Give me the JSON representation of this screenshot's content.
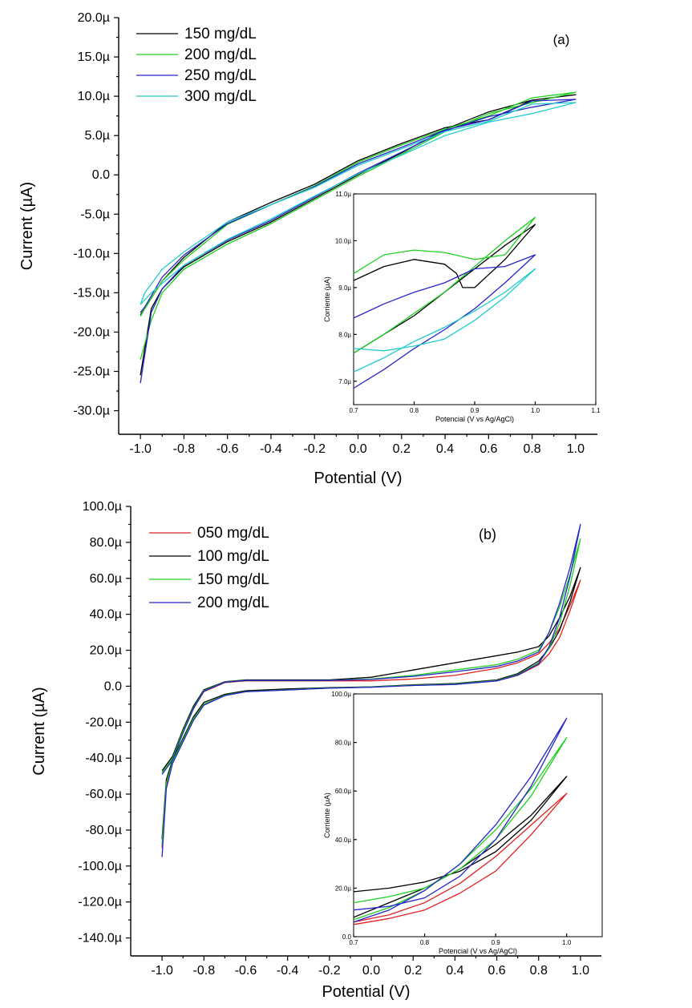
{
  "chart_data": [
    {
      "panel": "a",
      "type": "line",
      "annotation": "(a)",
      "xlabel": "Potential (V)",
      "ylabel": "Current (µA)",
      "xlim": [
        -1.1,
        1.1
      ],
      "ylim": [
        -33,
        20
      ],
      "xticks": [
        -1.0,
        -0.8,
        -0.6,
        -0.4,
        -0.2,
        0.0,
        0.2,
        0.4,
        0.6,
        0.8,
        1.0
      ],
      "xtick_labels": [
        "-1.0",
        "-0.8",
        "-0.6",
        "-0.4",
        "-0.2",
        "0.0",
        "0.2",
        "0.4",
        "0.6",
        "0.8",
        "1.0"
      ],
      "yticks": [
        20,
        15,
        10,
        5,
        0,
        -5,
        -10,
        -15,
        -20,
        -25,
        -30
      ],
      "ytick_labels": [
        "20.0µ",
        "15.0µ",
        "10.0µ",
        "5.0µ",
        "0.0",
        "-5.0µ",
        "-10.0µ",
        "-15.0µ",
        "-20.0µ",
        "-25.0µ",
        "-30.0µ"
      ],
      "legend_position": "top-left",
      "series": [
        {
          "name": "150 mg/dL",
          "color": "#000000",
          "x": [
            -1.0,
            -0.95,
            -0.9,
            -0.8,
            -0.6,
            -0.4,
            -0.2,
            0.0,
            0.2,
            0.4,
            0.6,
            0.8,
            1.0,
            0.8,
            0.6,
            0.4,
            0.2,
            0.0,
            -0.2,
            -0.4,
            -0.6,
            -0.8,
            -0.9,
            -0.98,
            -1.0
          ],
          "y": [
            -25.5,
            -17.0,
            -14.5,
            -11.7,
            -8.5,
            -6.0,
            -3.0,
            0.0,
            2.8,
            5.8,
            8.0,
            9.5,
            10.2,
            9.5,
            7.0,
            6.0,
            4.0,
            1.8,
            -1.2,
            -3.5,
            -6.0,
            -10.5,
            -13.5,
            -17.0,
            -17.8
          ]
        },
        {
          "name": "200 mg/dL",
          "color": "#1fd01f",
          "x": [
            -1.0,
            -0.95,
            -0.9,
            -0.8,
            -0.6,
            -0.4,
            -0.2,
            0.0,
            0.2,
            0.4,
            0.6,
            0.8,
            1.0,
            0.8,
            0.6,
            0.4,
            0.2,
            0.0,
            -0.2,
            -0.4,
            -0.6,
            -0.8,
            -0.9,
            -0.98,
            -1.0
          ],
          "y": [
            -23.5,
            -18.5,
            -15.0,
            -12.0,
            -8.8,
            -6.2,
            -3.2,
            -0.2,
            2.6,
            5.5,
            7.8,
            9.2,
            10.5,
            9.8,
            7.5,
            5.8,
            3.8,
            1.6,
            -1.4,
            -3.8,
            -6.3,
            -10.8,
            -13.5,
            -17.0,
            -18.0
          ]
        },
        {
          "name": "250 mg/dL",
          "color": "#2424c8",
          "x": [
            -1.0,
            -0.95,
            -0.9,
            -0.8,
            -0.6,
            -0.4,
            -0.2,
            0.0,
            0.2,
            0.4,
            0.6,
            0.8,
            1.0,
            0.8,
            0.6,
            0.4,
            0.2,
            0.0,
            -0.2,
            -0.4,
            -0.6,
            -0.8,
            -0.9,
            -0.98,
            -1.0
          ],
          "y": [
            -26.5,
            -17.5,
            -14.5,
            -11.5,
            -8.3,
            -5.8,
            -2.8,
            0.2,
            2.9,
            5.6,
            7.4,
            8.6,
            9.6,
            9.4,
            7.0,
            5.7,
            3.5,
            1.4,
            -1.5,
            -3.8,
            -6.2,
            -10.2,
            -13.0,
            -16.8,
            -17.5
          ]
        },
        {
          "name": "300 mg/dL",
          "color": "#22cccc",
          "x": [
            -1.0,
            -0.95,
            -0.9,
            -0.8,
            -0.6,
            -0.4,
            -0.2,
            0.0,
            0.2,
            0.4,
            0.6,
            0.8,
            1.0,
            0.8,
            0.6,
            0.4,
            0.2,
            0.0,
            -0.2,
            -0.4,
            -0.6,
            -0.8,
            -0.9,
            -0.98,
            -1.0
          ],
          "y": [
            -16.5,
            -15.0,
            -13.8,
            -11.5,
            -8.2,
            -5.6,
            -2.7,
            0.1,
            2.5,
            5.0,
            6.7,
            7.8,
            9.2,
            9.0,
            6.8,
            5.5,
            3.3,
            1.2,
            -1.6,
            -3.8,
            -6.0,
            -9.8,
            -12.0,
            -15.0,
            -16.5
          ]
        }
      ],
      "inset": {
        "xlabel": "Potencial (V vs Ag/AgCl)",
        "ylabel": "Corriente (µA)",
        "xlim": [
          0.7,
          1.1
        ],
        "ylim": [
          6.5,
          11.0
        ],
        "xticks": [
          0.7,
          0.8,
          0.9,
          1.0,
          1.1
        ],
        "xtick_labels": [
          "0.7",
          "0.8",
          "0.9",
          "1.0",
          "1.1"
        ],
        "yticks": [
          7.0,
          8.0,
          9.0,
          10.0,
          11.0
        ],
        "ytick_labels": [
          "7.0µ",
          "8.0µ",
          "9.0µ",
          "10.0µ",
          "11.0µ"
        ],
        "series": [
          {
            "color": "#000000",
            "x": [
              0.7,
              0.75,
              0.8,
              0.85,
              0.87,
              0.88,
              0.9,
              0.95,
              1.0,
              0.95,
              0.9,
              0.85,
              0.8,
              0.75,
              0.7
            ],
            "y": [
              9.15,
              9.45,
              9.6,
              9.5,
              9.3,
              9.0,
              9.0,
              9.6,
              10.35,
              9.9,
              9.4,
              8.9,
              8.4,
              8.0,
              7.6
            ]
          },
          {
            "color": "#1fd01f",
            "x": [
              0.7,
              0.75,
              0.8,
              0.85,
              0.9,
              0.95,
              1.0,
              0.95,
              0.9,
              0.85,
              0.8,
              0.75,
              0.7
            ],
            "y": [
              9.3,
              9.7,
              9.8,
              9.75,
              9.6,
              9.7,
              10.5,
              10.0,
              9.45,
              8.9,
              8.45,
              8.0,
              7.6
            ]
          },
          {
            "color": "#2424c8",
            "x": [
              0.7,
              0.75,
              0.8,
              0.85,
              0.9,
              0.95,
              1.0,
              0.95,
              0.9,
              0.85,
              0.8,
              0.75,
              0.7
            ],
            "y": [
              8.35,
              8.65,
              8.9,
              9.1,
              9.4,
              9.45,
              9.7,
              9.1,
              8.55,
              8.1,
              7.7,
              7.25,
              6.85
            ]
          },
          {
            "color": "#22cccc",
            "x": [
              0.7,
              0.75,
              0.8,
              0.85,
              0.9,
              0.95,
              1.0,
              0.95,
              0.9,
              0.85,
              0.8,
              0.75,
              0.7
            ],
            "y": [
              7.7,
              7.65,
              7.75,
              7.9,
              8.3,
              8.8,
              9.4,
              8.9,
              8.5,
              8.15,
              7.85,
              7.5,
              7.2
            ]
          }
        ]
      }
    },
    {
      "panel": "b",
      "type": "line",
      "annotation": "(b)",
      "xlabel": "Potential (V)",
      "ylabel": "Current (µA)",
      "xlim": [
        -1.15,
        1.1
      ],
      "ylim": [
        -150,
        100
      ],
      "xticks": [
        -1.0,
        -0.8,
        -0.6,
        -0.4,
        -0.2,
        0.0,
        0.2,
        0.4,
        0.6,
        0.8,
        1.0
      ],
      "xtick_labels": [
        "-1.0",
        "-0.8",
        "-0.6",
        "-0.4",
        "-0.2",
        "0.0",
        "0.2",
        "0.4",
        "0.6",
        "0.8",
        "1.0"
      ],
      "yticks": [
        100,
        80,
        60,
        40,
        20,
        0,
        -20,
        -40,
        -60,
        -80,
        -100,
        -120,
        -140
      ],
      "ytick_labels": [
        "100.0µ",
        "80.0µ",
        "60.0µ",
        "40.0µ",
        "20.0µ",
        "0.0",
        "-20.0µ",
        "-40.0µ",
        "-60.0µ",
        "-80.0µ",
        "-100.0µ",
        "-120.0µ",
        "-140.0µ"
      ],
      "legend_position": "top-left",
      "series": [
        {
          "name": "050 mg/dL",
          "color": "#e02020",
          "x": [
            -1.0,
            -0.98,
            -0.95,
            -0.9,
            -0.85,
            -0.8,
            -0.7,
            -0.6,
            -0.4,
            -0.2,
            0.0,
            0.2,
            0.4,
            0.6,
            0.7,
            0.8,
            0.85,
            0.9,
            0.95,
            1.0,
            0.95,
            0.9,
            0.85,
            0.8,
            0.7,
            0.6,
            0.4,
            0.2,
            0.0,
            -0.2,
            -0.4,
            -0.6,
            -0.7,
            -0.8,
            -0.85,
            -0.9,
            -0.95,
            -1.0
          ],
          "y": [
            -90,
            -55,
            -42,
            -30,
            -18,
            -10,
            -5,
            -3,
            -2,
            -1,
            -0.5,
            0.5,
            1,
            3,
            6,
            12,
            18,
            27,
            42,
            59,
            45,
            32,
            24,
            18,
            13,
            10,
            6,
            4,
            3,
            3,
            3,
            3,
            2,
            -3,
            -12,
            -25,
            -40,
            -48
          ]
        },
        {
          "name": "100 mg/dL",
          "color": "#000000",
          "x": [
            -1.0,
            -0.98,
            -0.95,
            -0.9,
            -0.85,
            -0.8,
            -0.7,
            -0.6,
            -0.4,
            -0.2,
            0.0,
            0.2,
            0.4,
            0.6,
            0.7,
            0.8,
            0.85,
            0.9,
            0.95,
            1.0,
            0.95,
            0.9,
            0.85,
            0.8,
            0.7,
            0.6,
            0.4,
            0.2,
            0.0,
            -0.2,
            -0.4,
            -0.6,
            -0.7,
            -0.8,
            -0.85,
            -0.9,
            -0.95,
            -1.0
          ],
          "y": [
            -85,
            -52,
            -41,
            -29,
            -17,
            -9,
            -4.5,
            -2.5,
            -1.5,
            -0.8,
            -0.3,
            0.8,
            1.5,
            3.5,
            7,
            14,
            21,
            31,
            47,
            66,
            50,
            38,
            28,
            22,
            19,
            17,
            13,
            9,
            5,
            3.5,
            3.5,
            3.5,
            2.5,
            -2,
            -11,
            -24,
            -39,
            -47
          ]
        },
        {
          "name": "150 mg/dL",
          "color": "#1fd01f",
          "x": [
            -1.0,
            -0.98,
            -0.95,
            -0.9,
            -0.85,
            -0.8,
            -0.7,
            -0.6,
            -0.4,
            -0.2,
            0.0,
            0.2,
            0.4,
            0.6,
            0.7,
            0.8,
            0.85,
            0.9,
            0.95,
            1.0,
            0.95,
            0.9,
            0.85,
            0.8,
            0.7,
            0.6,
            0.4,
            0.2,
            0.0,
            -0.2,
            -0.4,
            -0.6,
            -0.7,
            -0.8,
            -0.85,
            -0.9,
            -0.95,
            -1.0
          ],
          "y": [
            -88,
            -54,
            -42,
            -30,
            -18,
            -10,
            -5,
            -3,
            -2,
            -1,
            -0.4,
            0.6,
            1.2,
            3.2,
            6.5,
            13,
            21,
            35,
            56,
            82,
            62,
            44,
            30,
            20,
            15,
            12,
            9,
            6,
            4,
            3.3,
            3.3,
            3.3,
            2.3,
            -2.5,
            -12,
            -25,
            -40,
            -48
          ]
        },
        {
          "name": "200 mg/dL",
          "color": "#2424c8",
          "x": [
            -1.0,
            -0.98,
            -0.95,
            -0.9,
            -0.85,
            -0.8,
            -0.7,
            -0.6,
            -0.4,
            -0.2,
            0.0,
            0.2,
            0.4,
            0.6,
            0.7,
            0.8,
            0.85,
            0.9,
            0.95,
            1.0,
            0.95,
            0.9,
            0.85,
            0.8,
            0.7,
            0.6,
            0.4,
            0.2,
            0.0,
            -0.2,
            -0.4,
            -0.6,
            -0.7,
            -0.8,
            -0.85,
            -0.9,
            -0.95,
            -1.0
          ],
          "y": [
            -95,
            -57,
            -43,
            -31,
            -19,
            -10.5,
            -5.2,
            -3.1,
            -2.1,
            -1.1,
            -0.6,
            0.4,
            1,
            3,
            6.2,
            12.5,
            22,
            38,
            61,
            90,
            66,
            46,
            30,
            19,
            14,
            11,
            8,
            5.5,
            3.8,
            3.2,
            3.2,
            3.2,
            2.2,
            -2.8,
            -12.5,
            -26,
            -41,
            -49
          ]
        }
      ],
      "inset": {
        "xlabel": "Potencial (V vs Ag/AgCl)",
        "ylabel": "Corriente (µA)",
        "xlim": [
          0.7,
          1.05
        ],
        "ylim": [
          0,
          100
        ],
        "xticks": [
          0.7,
          0.8,
          0.9,
          1.0
        ],
        "xtick_labels": [
          "0.7",
          "0.8",
          "0.9",
          "1.0"
        ],
        "yticks": [
          0,
          20,
          40,
          60,
          80,
          100
        ],
        "ytick_labels": [
          "0.0",
          "20.0µ",
          "40.0µ",
          "60.0µ",
          "80.0µ",
          "100.0µ"
        ],
        "series": [
          {
            "color": "#e02020",
            "x": [
              0.7,
              0.75,
              0.8,
              0.85,
              0.9,
              0.95,
              1.0,
              0.95,
              0.9,
              0.85,
              0.8,
              0.75,
              0.7
            ],
            "y": [
              5,
              7.5,
              11,
              18,
              27,
              42,
              59,
              46,
              33,
              22,
              14,
              9,
              6
            ]
          },
          {
            "color": "#000000",
            "x": [
              0.7,
              0.75,
              0.8,
              0.85,
              0.9,
              0.95,
              1.0,
              0.95,
              0.9,
              0.85,
              0.8,
              0.75,
              0.7
            ],
            "y": [
              18.5,
              20,
              22.5,
              27,
              35,
              48,
              66,
              50,
              38,
              28,
              20,
              14,
              8
            ]
          },
          {
            "color": "#1fd01f",
            "x": [
              0.7,
              0.75,
              0.8,
              0.85,
              0.9,
              0.95,
              1.0,
              0.95,
              0.9,
              0.85,
              0.8,
              0.75,
              0.7
            ],
            "y": [
              14,
              16.5,
              20,
              28,
              40,
              58,
              82,
              61,
              44,
              30,
              19,
              12,
              7
            ]
          },
          {
            "color": "#2424c8",
            "x": [
              0.7,
              0.75,
              0.8,
              0.85,
              0.9,
              0.95,
              1.0,
              0.95,
              0.9,
              0.85,
              0.8,
              0.75,
              0.7
            ],
            "y": [
              11,
              12.5,
              16,
              25,
              40,
              62,
              90,
              66,
              46,
              30,
              19,
              11,
              6
            ]
          }
        ]
      }
    }
  ]
}
